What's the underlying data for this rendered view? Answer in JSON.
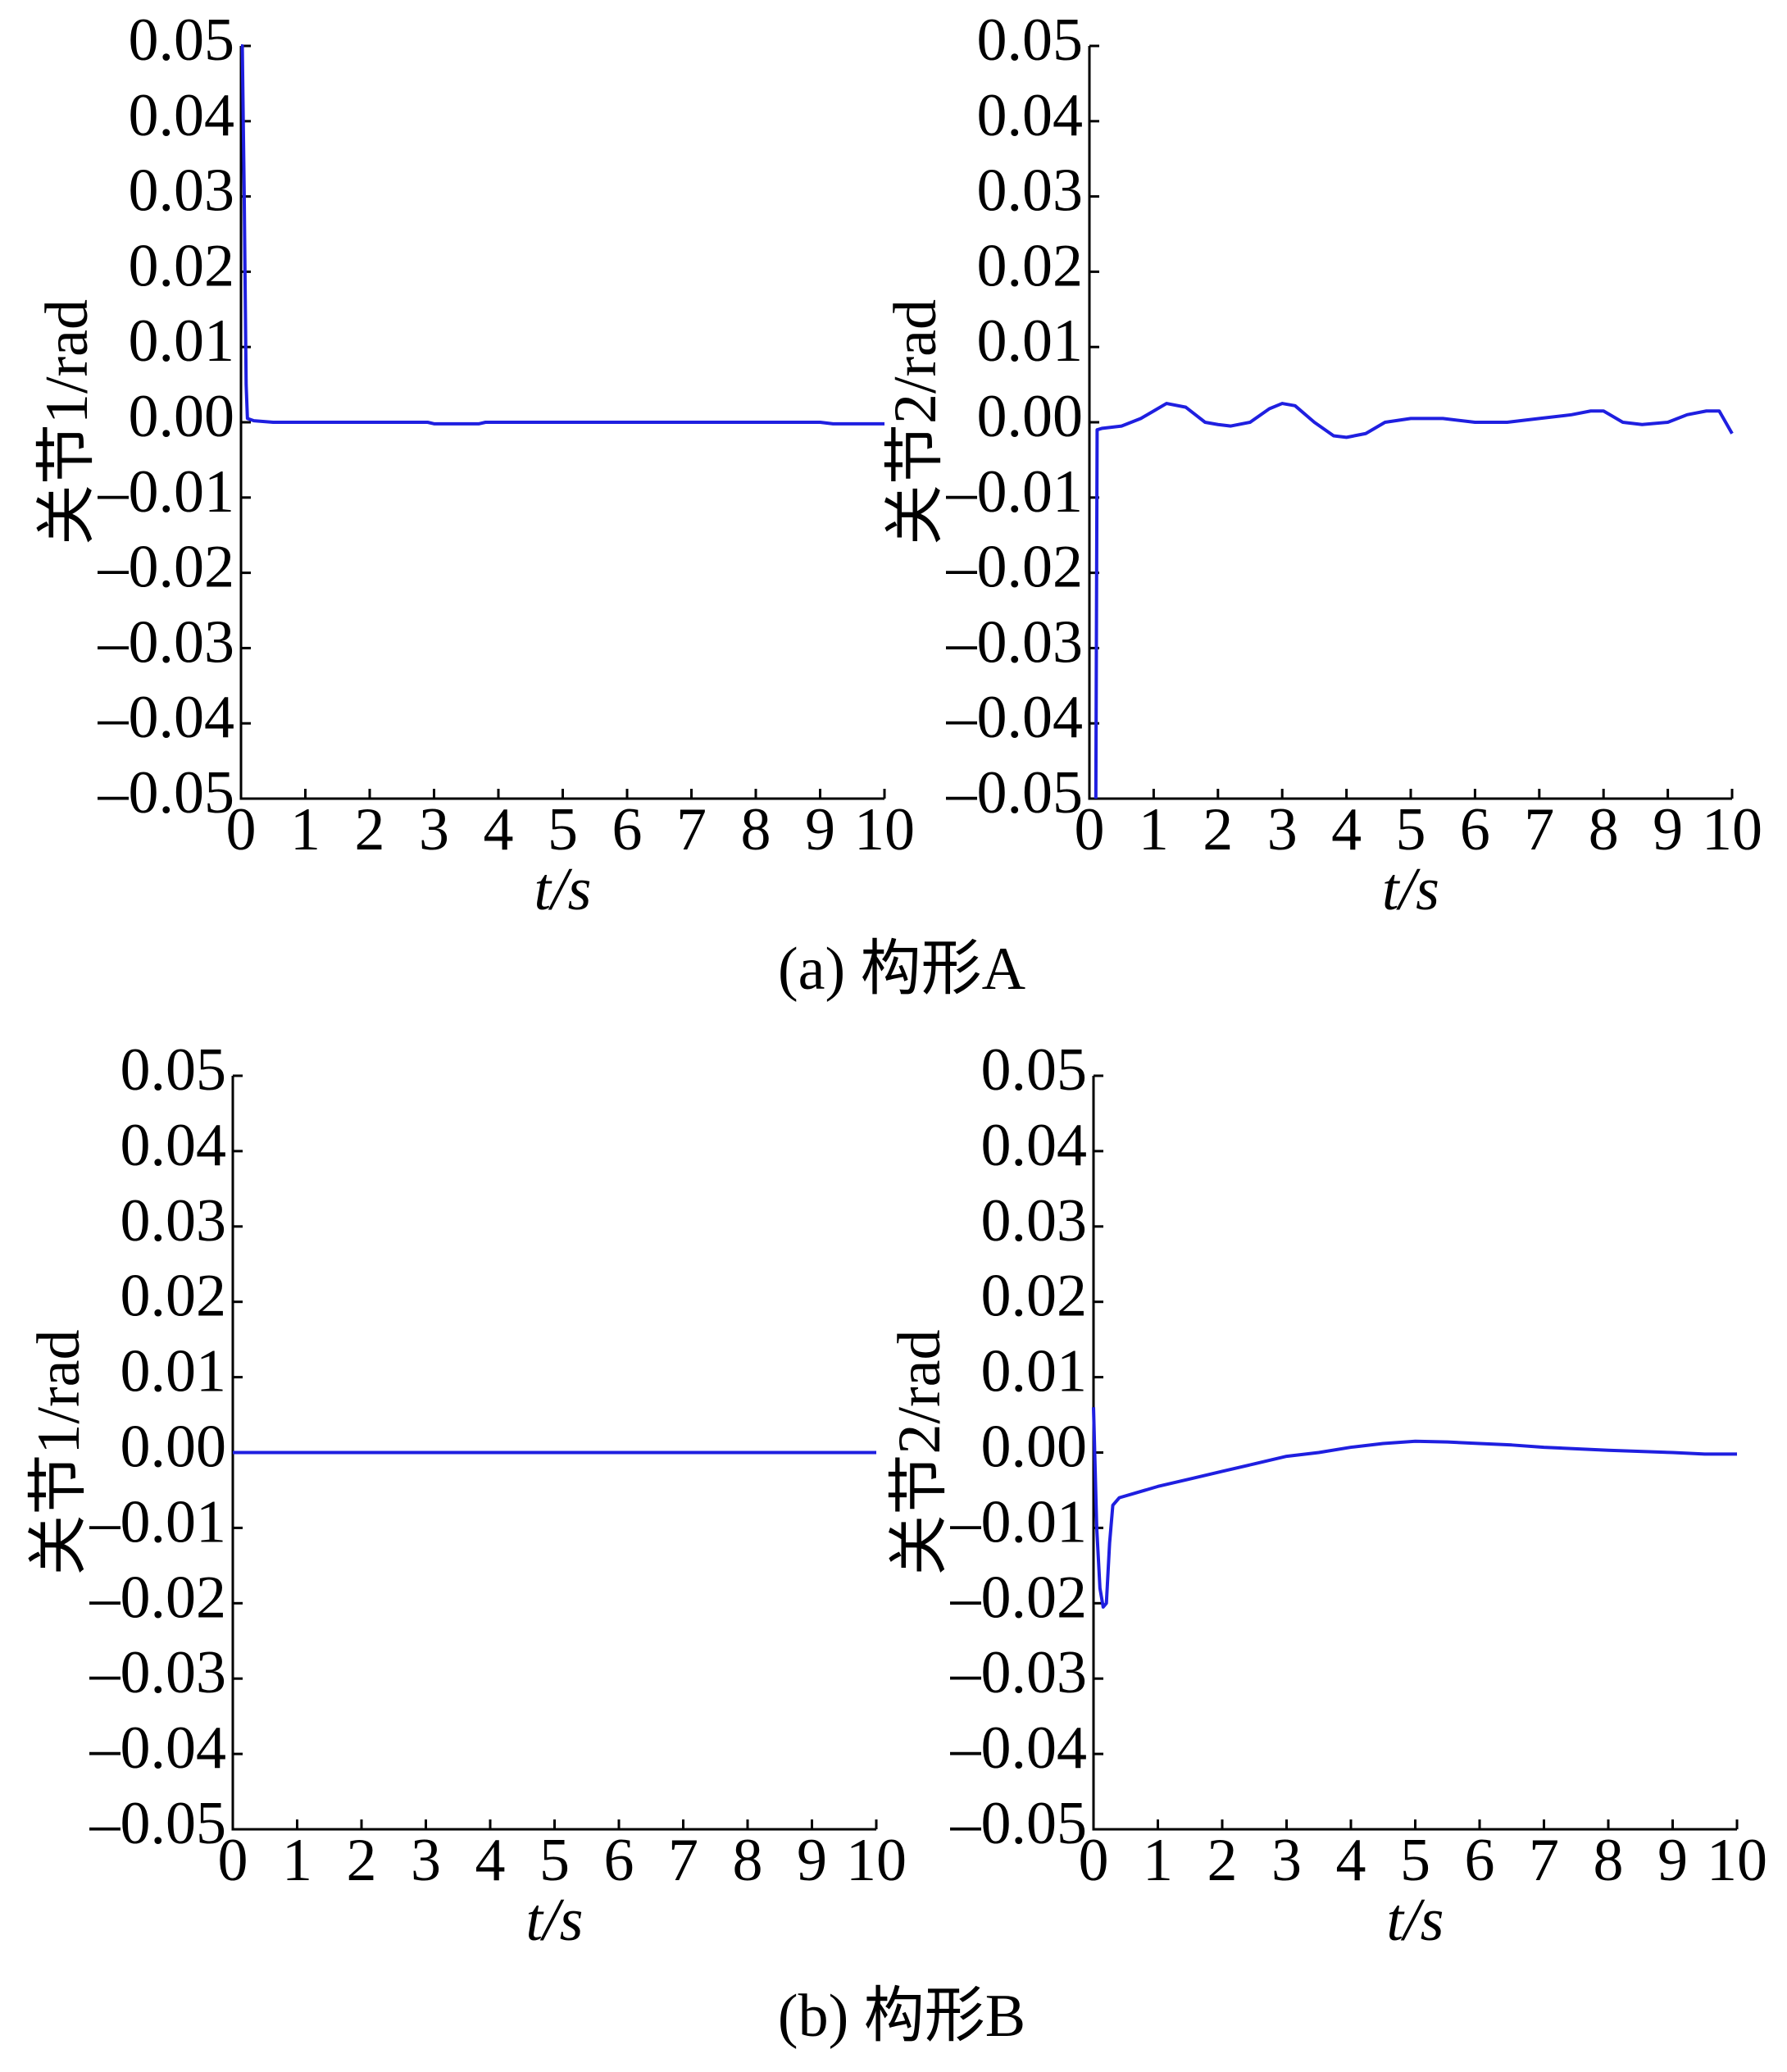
{
  "chart_data": [
    {
      "type": "line",
      "xlabel": "t/s",
      "ylabel": "关节1/rad",
      "color": "#1f1fe0",
      "x": [
        0,
        0.02,
        0.05,
        0.08,
        0.1,
        0.2,
        0.5,
        1,
        2,
        2.9,
        3,
        3.7,
        3.8,
        5,
        9,
        9.2,
        10
      ],
      "values": [
        0.05,
        0.05,
        0.03,
        0.005,
        0.0005,
        0.0002,
        0,
        0,
        0,
        0,
        -0.0002,
        -0.0002,
        0,
        0,
        0,
        -0.0002,
        -0.0002
      ],
      "xlim": [
        0,
        10
      ],
      "xticks": [
        0,
        1,
        2,
        3,
        4,
        5,
        6,
        7,
        8,
        9,
        10
      ],
      "ylim": [
        -0.05,
        0.05
      ],
      "yticks": [
        {
          "value": -0.05,
          "label": "–0.05"
        },
        {
          "value": -0.04,
          "label": "–0.04"
        },
        {
          "value": -0.03,
          "label": "–0.03"
        },
        {
          "value": -0.02,
          "label": "–0.02"
        },
        {
          "value": -0.01,
          "label": "–0.01"
        },
        {
          "value": 0,
          "label": "0.00"
        },
        {
          "value": 0.01,
          "label": "0.01"
        },
        {
          "value": 0.02,
          "label": "0.02"
        },
        {
          "value": 0.03,
          "label": "0.03"
        },
        {
          "value": 0.04,
          "label": "0.04"
        },
        {
          "value": 0.05,
          "label": "0.05"
        }
      ]
    },
    {
      "type": "line",
      "xlabel": "t/s",
      "ylabel": "关节2/rad",
      "color": "#1f1fe0",
      "x": [
        0.1,
        0.12,
        0.2,
        0.5,
        0.8,
        1.0,
        1.2,
        1.5,
        1.8,
        2.0,
        2.2,
        2.5,
        2.8,
        3.0,
        3.2,
        3.5,
        3.8,
        4.0,
        4.3,
        4.6,
        5.0,
        5.5,
        6.0,
        6.5,
        7.0,
        7.5,
        7.8,
        8.0,
        8.3,
        8.6,
        9.0,
        9.3,
        9.6,
        9.8,
        10
      ],
      "values": [
        -0.05,
        -0.001,
        -0.0008,
        -0.0005,
        0.0005,
        0.0015,
        0.0025,
        0.002,
        0.0,
        -0.0003,
        -0.0005,
        0.0,
        0.0018,
        0.0025,
        0.0022,
        0.0,
        -0.0018,
        -0.002,
        -0.0015,
        0.0,
        0.0005,
        0.0005,
        0.0,
        0.0,
        0.0005,
        0.001,
        0.0015,
        0.0015,
        0.0,
        -0.0003,
        0.0,
        0.001,
        0.0015,
        0.0015,
        -0.0015
      ],
      "xlim": [
        0,
        10
      ],
      "xticks": [
        0,
        1,
        2,
        3,
        4,
        5,
        6,
        7,
        8,
        9,
        10
      ],
      "ylim": [
        -0.05,
        0.05
      ],
      "yticks": [
        {
          "value": -0.05,
          "label": "–0.05"
        },
        {
          "value": -0.04,
          "label": "–0.04"
        },
        {
          "value": -0.03,
          "label": "–0.03"
        },
        {
          "value": -0.02,
          "label": "–0.02"
        },
        {
          "value": -0.01,
          "label": "–0.01"
        },
        {
          "value": 0,
          "label": "0.00"
        },
        {
          "value": 0.01,
          "label": "0.01"
        },
        {
          "value": 0.02,
          "label": "0.02"
        },
        {
          "value": 0.03,
          "label": "0.03"
        },
        {
          "value": 0.04,
          "label": "0.04"
        },
        {
          "value": 0.05,
          "label": "0.05"
        }
      ]
    },
    {
      "type": "line",
      "xlabel": "t/s",
      "ylabel": "关节1/rad",
      "color": "#1f1fe0",
      "x": [
        0,
        10
      ],
      "values": [
        0,
        0
      ],
      "xlim": [
        0,
        10
      ],
      "xticks": [
        0,
        1,
        2,
        3,
        4,
        5,
        6,
        7,
        8,
        9,
        10
      ],
      "ylim": [
        -0.05,
        0.05
      ],
      "yticks": [
        {
          "value": -0.05,
          "label": "–0.05"
        },
        {
          "value": -0.04,
          "label": "–0.04"
        },
        {
          "value": -0.03,
          "label": "–0.03"
        },
        {
          "value": -0.02,
          "label": "–0.02"
        },
        {
          "value": -0.01,
          "label": "–0.01"
        },
        {
          "value": 0,
          "label": "0.00"
        },
        {
          "value": 0.01,
          "label": "0.01"
        },
        {
          "value": 0.02,
          "label": "0.02"
        },
        {
          "value": 0.03,
          "label": "0.03"
        },
        {
          "value": 0.04,
          "label": "0.04"
        },
        {
          "value": 0.05,
          "label": "0.05"
        }
      ]
    },
    {
      "type": "line",
      "xlabel": "t/s",
      "ylabel": "关节2/rad",
      "color": "#1f1fe0",
      "x": [
        0,
        0.05,
        0.1,
        0.15,
        0.2,
        0.25,
        0.3,
        0.4,
        0.6,
        1,
        1.5,
        2,
        2.5,
        3,
        3.5,
        4,
        4.5,
        5,
        5.5,
        6,
        6.5,
        7,
        8,
        9,
        9.5,
        10
      ],
      "values": [
        0.006,
        -0.01,
        -0.018,
        -0.0205,
        -0.02,
        -0.012,
        -0.007,
        -0.006,
        -0.0055,
        -0.0045,
        -0.0035,
        -0.0025,
        -0.0015,
        -0.0005,
        0,
        0.0007,
        0.0012,
        0.0015,
        0.0014,
        0.0012,
        0.001,
        0.0007,
        0.0003,
        0,
        -0.0002,
        -0.0002
      ],
      "xlim": [
        0,
        10
      ],
      "xticks": [
        0,
        1,
        2,
        3,
        4,
        5,
        6,
        7,
        8,
        9,
        10
      ],
      "ylim": [
        -0.05,
        0.05
      ],
      "yticks": [
        {
          "value": -0.05,
          "label": "–0.05"
        },
        {
          "value": -0.04,
          "label": "–0.04"
        },
        {
          "value": -0.03,
          "label": "–0.03"
        },
        {
          "value": -0.02,
          "label": "–0.02"
        },
        {
          "value": -0.01,
          "label": "–0.01"
        },
        {
          "value": 0,
          "label": "0.00"
        },
        {
          "value": 0.01,
          "label": "0.01"
        },
        {
          "value": 0.02,
          "label": "0.02"
        },
        {
          "value": 0.03,
          "label": "0.03"
        },
        {
          "value": 0.04,
          "label": "0.04"
        },
        {
          "value": 0.05,
          "label": "0.05"
        }
      ]
    }
  ],
  "captions": [
    "(a) 构形A",
    "(b) 构形B"
  ]
}
